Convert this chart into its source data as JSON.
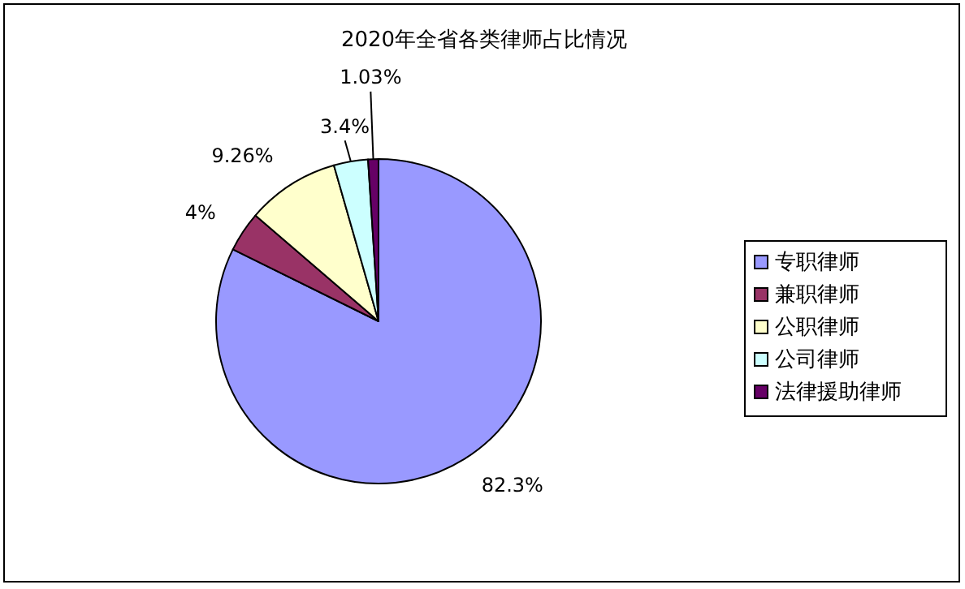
{
  "chart_data": {
    "type": "pie",
    "title": "2020年全省各类律师占比情况",
    "categories": [
      "专职律师",
      "兼职律师",
      "公职律师",
      "公司律师",
      "法律援助律师"
    ],
    "values": [
      82.3,
      4,
      9.26,
      3.4,
      1.03
    ],
    "colors": [
      "#9999ff",
      "#993366",
      "#ffffcc",
      "#ccffff",
      "#660066"
    ],
    "value_labels": [
      "82.3%",
      "4%",
      "9.26%",
      "3.4%",
      "1.03%"
    ],
    "legend": "right"
  }
}
